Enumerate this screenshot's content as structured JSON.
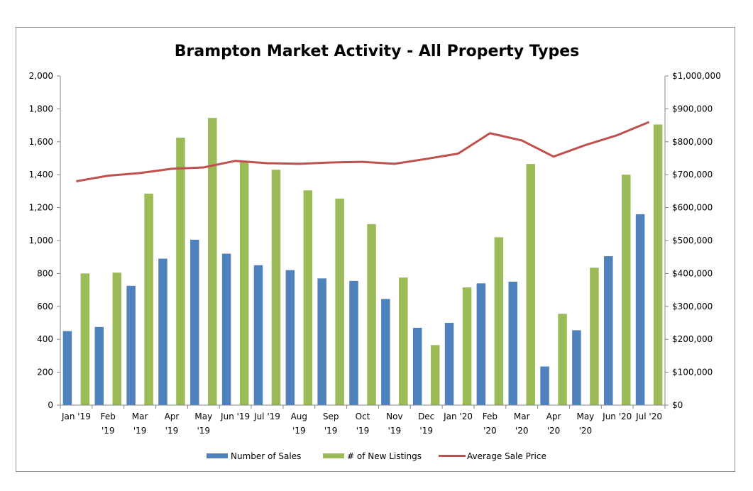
{
  "chart_data": {
    "type": "bar",
    "title": "Brampton Market Activity - All Property Types",
    "categories": [
      [
        "Jan '19"
      ],
      [
        "Feb",
        "'19"
      ],
      [
        "Mar",
        "'19"
      ],
      [
        "Apr",
        "'19"
      ],
      [
        "May",
        "'19"
      ],
      [
        "Jun '19"
      ],
      [
        "Jul '19"
      ],
      [
        "Aug",
        "'19"
      ],
      [
        "Sep",
        "'19"
      ],
      [
        "Oct",
        "'19"
      ],
      [
        "Nov",
        "'19"
      ],
      [
        "Dec",
        "'19"
      ],
      [
        "Jan '20"
      ],
      [
        "Feb",
        "'20"
      ],
      [
        "Mar",
        "'20"
      ],
      [
        "Apr",
        "'20"
      ],
      [
        "May",
        "'20"
      ],
      [
        "Jun '20"
      ],
      [
        "Jul '20"
      ]
    ],
    "series": [
      {
        "name": "Number of Sales",
        "type": "bar",
        "axis": "left",
        "color": "#4f81bd",
        "values": [
          450,
          475,
          725,
          890,
          1005,
          920,
          850,
          820,
          770,
          755,
          645,
          470,
          500,
          740,
          750,
          235,
          455,
          905,
          1160
        ]
      },
      {
        "name": "# of New Listings",
        "type": "bar",
        "axis": "left",
        "color": "#9bbb59",
        "values": [
          800,
          805,
          1285,
          1625,
          1745,
          1480,
          1430,
          1305,
          1255,
          1100,
          775,
          365,
          715,
          1020,
          1465,
          555,
          835,
          1400,
          1705
        ]
      },
      {
        "name": "Average Sale Price",
        "type": "line",
        "axis": "right",
        "color": "#c0504d",
        "values": [
          680000,
          697000,
          705000,
          718000,
          722000,
          742000,
          735000,
          733000,
          737000,
          739000,
          733000,
          748000,
          764000,
          826000,
          804000,
          755000,
          790000,
          820000,
          860000
        ]
      }
    ],
    "y_left": {
      "range": [
        0,
        2000
      ],
      "ticks": [
        "0",
        "200",
        "400",
        "600",
        "800",
        "1,000",
        "1,200",
        "1,400",
        "1,600",
        "1,800",
        "2,000"
      ]
    },
    "y_right": {
      "range": [
        0,
        1000000
      ],
      "ticks": [
        "$0",
        "$100,000",
        "$200,000",
        "$300,000",
        "$400,000",
        "$500,000",
        "$600,000",
        "$700,000",
        "$800,000",
        "$900,000",
        "$1,000,000"
      ]
    },
    "grid": false,
    "legend_position": "bottom"
  }
}
